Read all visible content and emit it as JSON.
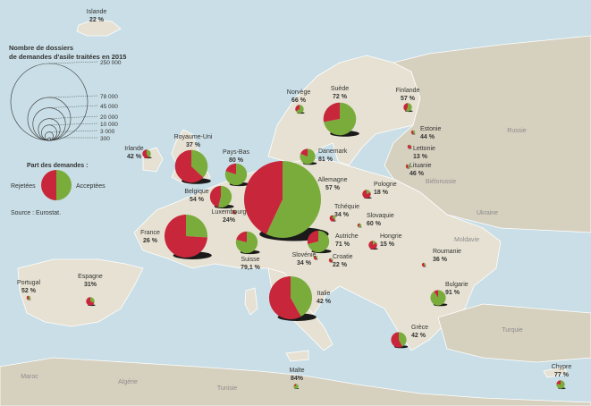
{
  "legend": {
    "size_title_line1": "Nombre de dossiers",
    "size_title_line2": "de demandes d'asile traitées en 2015",
    "size_values": [
      "250 000",
      "78 000",
      "45 000",
      "20 000",
      "10 000",
      "3 000",
      "300"
    ],
    "share_title": "Part des demandes :",
    "rejected_label": "Rejetées",
    "accepted_label": "Acceptées",
    "source": "Source : Eurostat."
  },
  "colors": {
    "accepted": "#7aac3c",
    "rejected": "#c8263a",
    "land": "#e6e1d2",
    "land_other": "#d6d0bf",
    "sea": "#c9dee6"
  },
  "countries": [
    {
      "name": "Islande",
      "pct_text": "22 %",
      "accept_pct": 22,
      "cases": 300
    },
    {
      "name": "Norvège",
      "pct_text": "66 %",
      "accept_pct": 66,
      "cases": 3000
    },
    {
      "name": "Suède",
      "pct_text": "72 %",
      "accept_pct": 72,
      "cases": 45000
    },
    {
      "name": "Finlande",
      "pct_text": "57 %",
      "accept_pct": 57,
      "cases": 3000
    },
    {
      "name": "Estonie",
      "pct_text": "44 %",
      "accept_pct": 44,
      "cases": 300
    },
    {
      "name": "Lettonie",
      "pct_text": "13 %",
      "accept_pct": 13,
      "cases": 300
    },
    {
      "name": "Lituanie",
      "pct_text": "46 %",
      "accept_pct": 46,
      "cases": 300
    },
    {
      "name": "Danemark",
      "pct_text": "81 %",
      "accept_pct": 81,
      "cases": 10000
    },
    {
      "name": "Irlande",
      "pct_text": "42 %",
      "accept_pct": 42,
      "cases": 3000
    },
    {
      "name": "Royaume-Uni",
      "pct_text": "37 %",
      "accept_pct": 37,
      "cases": 45000
    },
    {
      "name": "Pays-Bas",
      "pct_text": "80 %",
      "accept_pct": 80,
      "cases": 20000
    },
    {
      "name": "Belgique",
      "pct_text": "54 %",
      "accept_pct": 54,
      "cases": 20000
    },
    {
      "name": "Luxembourg",
      "pct_text": "24%",
      "accept_pct": 24,
      "cases": 300
    },
    {
      "name": "Allemagne",
      "pct_text": "57 %",
      "accept_pct": 57,
      "cases": 250000
    },
    {
      "name": "Pologne",
      "pct_text": "18 %",
      "accept_pct": 18,
      "cases": 3000
    },
    {
      "name": "Tchéquie",
      "pct_text": "34 %",
      "accept_pct": 34,
      "cases": 1500
    },
    {
      "name": "Slovaquie",
      "pct_text": "60 %",
      "accept_pct": 60,
      "cases": 300
    },
    {
      "name": "France",
      "pct_text": "26 %",
      "accept_pct": 26,
      "cases": 78000
    },
    {
      "name": "Suisse",
      "pct_text": "79,1 %",
      "accept_pct": 79.1,
      "cases": 20000
    },
    {
      "name": "Autriche",
      "pct_text": "71 %",
      "accept_pct": 71,
      "cases": 20000
    },
    {
      "name": "Hongrie",
      "pct_text": "15 %",
      "accept_pct": 15,
      "cases": 3000
    },
    {
      "name": "Slovénie",
      "pct_text": "34 %",
      "accept_pct": 34,
      "cases": 300
    },
    {
      "name": "Croatie",
      "pct_text": "22 %",
      "accept_pct": 22,
      "cases": 300
    },
    {
      "name": "Roumanie",
      "pct_text": "36 %",
      "accept_pct": 36,
      "cases": 300
    },
    {
      "name": "Bulgarie",
      "pct_text": "91 %",
      "accept_pct": 91,
      "cases": 10000
    },
    {
      "name": "Portugal",
      "pct_text": "52 %",
      "accept_pct": 52,
      "cases": 300
    },
    {
      "name": "Espagne",
      "pct_text": "31%",
      "accept_pct": 31,
      "cases": 3000
    },
    {
      "name": "Italie",
      "pct_text": "42 %",
      "accept_pct": 42,
      "cases": 78000
    },
    {
      "name": "Grèce",
      "pct_text": "42 %",
      "accept_pct": 42,
      "cases": 10000
    },
    {
      "name": "Malte",
      "pct_text": "84%",
      "accept_pct": 84,
      "cases": 1000
    },
    {
      "name": "Chypre",
      "pct_text": "77 %",
      "accept_pct": 77,
      "cases": 3000
    }
  ],
  "other_labels": [
    "Russie",
    "Biélorussie",
    "Ukraine",
    "Moldavie",
    "Turquie",
    "Maroc",
    "Algérie",
    "Tunisie"
  ]
}
